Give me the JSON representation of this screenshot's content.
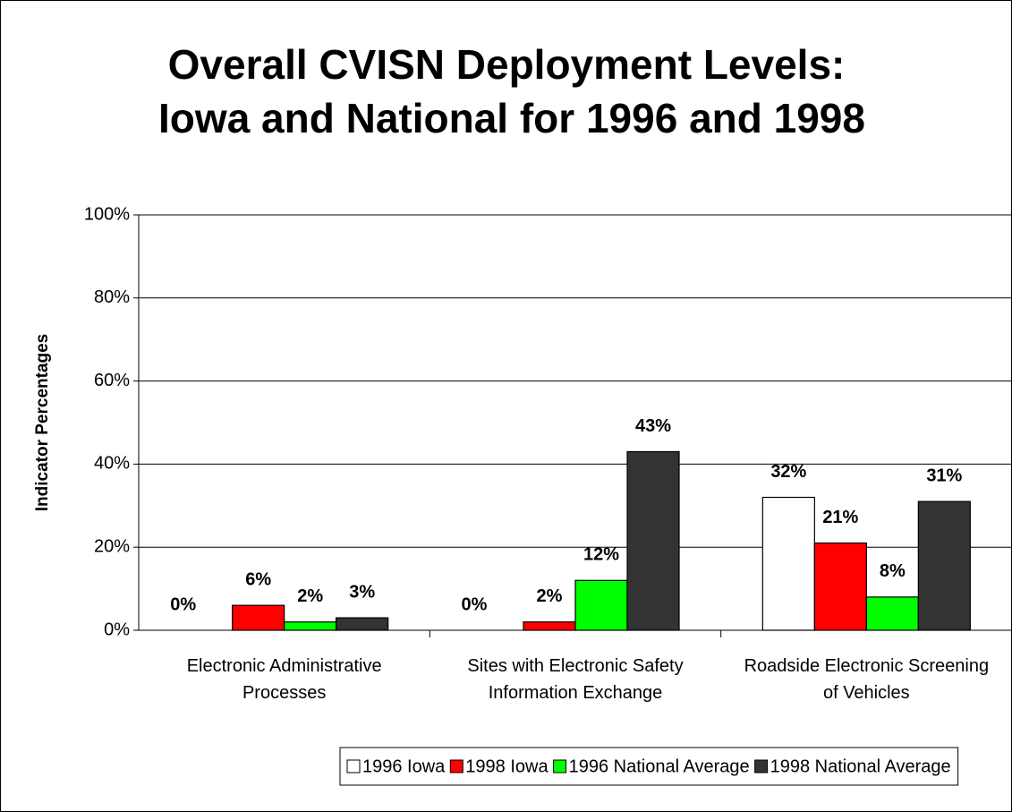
{
  "chart_data": {
    "type": "bar",
    "title": [
      "Overall CVISN Deployment Levels:",
      "Iowa and National for 1996 and 1998"
    ],
    "y_label": "Indicator Percentages",
    "categories": [
      "Electronic Administrative Processes",
      "Sites with Electronic Safety Information Exchange",
      "Roadside Electronic Screening of Vehicles"
    ],
    "series": [
      {
        "name": "1996 Iowa",
        "color": "#ffffff",
        "values": [
          0,
          0,
          32
        ],
        "value_labels": [
          "0%",
          "0%",
          "32%"
        ]
      },
      {
        "name": "1998 Iowa",
        "color": "#ff0000",
        "values": [
          6,
          2,
          21
        ],
        "value_labels": [
          "6%",
          "2%",
          "21%"
        ]
      },
      {
        "name": "1996 National Average",
        "color": "#00ff00",
        "values": [
          2,
          12,
          8
        ],
        "value_labels": [
          "2%",
          "12%",
          "8%"
        ]
      },
      {
        "name": "1998 National Average",
        "color": "#333333",
        "values": [
          3,
          43,
          31
        ],
        "value_labels": [
          "3%",
          "43%",
          "31%"
        ]
      }
    ],
    "ylim": [
      0,
      100
    ],
    "yticks": [
      {
        "value": 0,
        "label": "0%"
      },
      {
        "value": 20,
        "label": "20%"
      },
      {
        "value": 40,
        "label": "40%"
      },
      {
        "value": 60,
        "label": "60%"
      },
      {
        "value": 80,
        "label": "80%"
      },
      {
        "value": 100,
        "label": "100%"
      }
    ],
    "grid": true,
    "legend": "bottom"
  }
}
